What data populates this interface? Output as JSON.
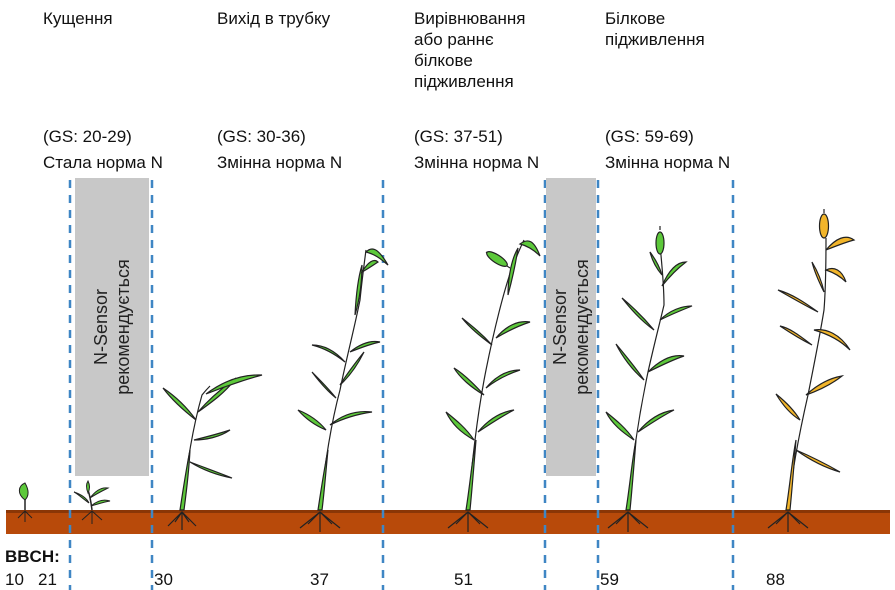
{
  "stages": [
    {
      "name": "Кущення",
      "gs": "(GS: 20-29)",
      "rate": "Стала норма N"
    },
    {
      "name": "Вихід в трубку",
      "gs": "(GS: 30-36)",
      "rate": "Змінна норма N"
    },
    {
      "name": "Вирівнювання\nабо раннє\nбілкове\nпідживлення",
      "gs": "(GS: 37-51)",
      "rate": "Змінна норма N"
    },
    {
      "name": "Білкове\nпідживлення",
      "gs": "(GS: 59-69)",
      "rate": "Змінна норма N"
    }
  ],
  "sensor_boxes": [
    {
      "line1": "N-Sensor",
      "line2": "рекомендується"
    },
    {
      "line1": "N-Sensor",
      "line2": "рекомендується"
    }
  ],
  "bbch": {
    "title": "BBCH:",
    "values": [
      "10",
      "21",
      "30",
      "37",
      "51",
      "59",
      "88"
    ]
  },
  "colors": {
    "soil": "#b84a0a",
    "leaf": "#5cc83a",
    "ripe": "#f2b52a",
    "divider": "#3f86c4",
    "sensor_box": "#c8c8c8"
  }
}
